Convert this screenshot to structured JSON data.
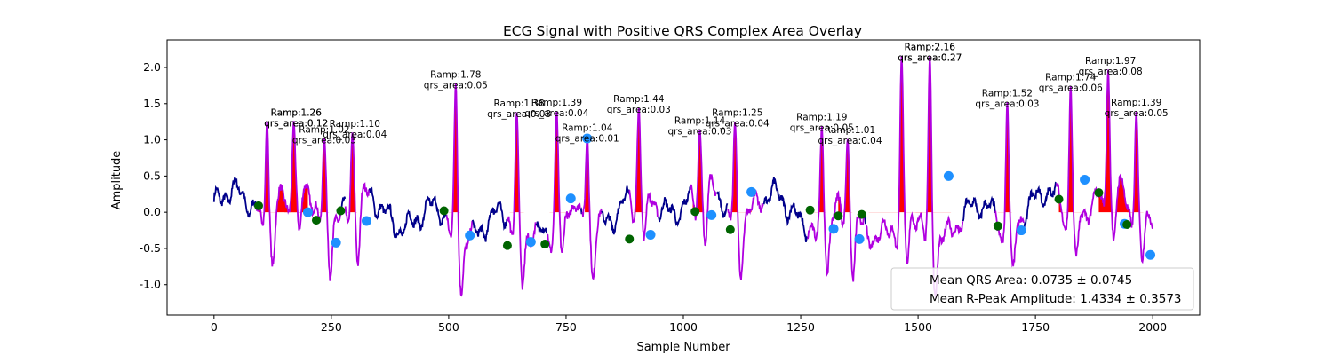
{
  "chart_data": {
    "type": "line",
    "title": "ECG Signal with Positive QRS Complex Area Overlay",
    "xlabel": "Sample Number",
    "ylabel": "Amplitude",
    "xlim": [
      -100,
      2100
    ],
    "ylim": [
      -1.42,
      2.38
    ],
    "xticks": [
      "0",
      "250",
      "500",
      "750",
      "1000",
      "1250",
      "1500",
      "1750",
      "2000"
    ],
    "xtick_values": [
      0,
      250,
      500,
      750,
      1000,
      1250,
      1500,
      1750,
      2000
    ],
    "yticks": [
      "-1.0",
      "-0.5",
      "0.0",
      "0.5",
      "1.0",
      "1.5",
      "2.0"
    ],
    "ytick_values": [
      -1.0,
      -0.5,
      0.0,
      0.5,
      1.0,
      1.5,
      2.0
    ],
    "grid": false,
    "colors": {
      "signal": "#00008b",
      "qrs_segment": "#b000e0",
      "qrs_area": "#ff0000",
      "q_marker": "#1e90ff",
      "s_marker": "#006400"
    },
    "r_peaks": [
      {
        "x": 113,
        "y": 1.26
      },
      {
        "x": 170,
        "y": 1.26
      },
      {
        "x": 235,
        "y": 1.02
      },
      {
        "x": 295,
        "y": 1.1
      },
      {
        "x": 515,
        "y": 1.78
      },
      {
        "x": 645,
        "y": 1.38
      },
      {
        "x": 730,
        "y": 1.39
      },
      {
        "x": 795,
        "y": 1.04
      },
      {
        "x": 905,
        "y": 1.44
      },
      {
        "x": 1035,
        "y": 1.14
      },
      {
        "x": 1110,
        "y": 1.25
      },
      {
        "x": 1295,
        "y": 1.19
      },
      {
        "x": 1350,
        "y": 1.01
      },
      {
        "x": 1465,
        "y": 2.16
      },
      {
        "x": 1525,
        "y": 2.16
      },
      {
        "x": 1690,
        "y": 1.52
      },
      {
        "x": 1825,
        "y": 1.74
      },
      {
        "x": 1905,
        "y": 1.97
      },
      {
        "x": 1965,
        "y": 1.39
      }
    ],
    "q_points": [
      {
        "x": 200,
        "y": 0.0
      },
      {
        "x": 260,
        "y": -0.42
      },
      {
        "x": 325,
        "y": -0.12
      },
      {
        "x": 545,
        "y": -0.32
      },
      {
        "x": 675,
        "y": -0.41
      },
      {
        "x": 760,
        "y": 0.19
      },
      {
        "x": 795,
        "y": 1.02
      },
      {
        "x": 930,
        "y": -0.31
      },
      {
        "x": 1060,
        "y": -0.04
      },
      {
        "x": 1145,
        "y": 0.28
      },
      {
        "x": 1320,
        "y": -0.23
      },
      {
        "x": 1375,
        "y": -0.37
      },
      {
        "x": 1565,
        "y": 0.5
      },
      {
        "x": 1720,
        "y": -0.25
      },
      {
        "x": 1855,
        "y": 0.45
      },
      {
        "x": 1940,
        "y": -0.16
      },
      {
        "x": 1995,
        "y": -0.59
      }
    ],
    "s_points": [
      {
        "x": 95,
        "y": 0.09
      },
      {
        "x": 218,
        "y": -0.11
      },
      {
        "x": 270,
        "y": 0.02
      },
      {
        "x": 490,
        "y": 0.02
      },
      {
        "x": 625,
        "y": -0.46
      },
      {
        "x": 705,
        "y": -0.44
      },
      {
        "x": 885,
        "y": -0.37
      },
      {
        "x": 1025,
        "y": 0.01
      },
      {
        "x": 1100,
        "y": -0.24
      },
      {
        "x": 1270,
        "y": 0.03
      },
      {
        "x": 1330,
        "y": -0.05
      },
      {
        "x": 1380,
        "y": -0.03
      },
      {
        "x": 1670,
        "y": -0.19
      },
      {
        "x": 1800,
        "y": 0.18
      },
      {
        "x": 1885,
        "y": 0.27
      },
      {
        "x": 1945,
        "y": -0.17
      }
    ],
    "qrs_areas": [
      {
        "x0": 95,
        "x1": 190
      },
      {
        "x0": 150,
        "x1": 200
      },
      {
        "x0": 220,
        "x1": 245
      },
      {
        "x0": 285,
        "x1": 305
      },
      {
        "x0": 500,
        "x1": 525
      },
      {
        "x0": 630,
        "x1": 660
      },
      {
        "x0": 715,
        "x1": 755
      },
      {
        "x0": 790,
        "x1": 800
      },
      {
        "x0": 890,
        "x1": 920
      },
      {
        "x0": 1020,
        "x1": 1045
      },
      {
        "x0": 1100,
        "x1": 1145
      },
      {
        "x0": 1270,
        "x1": 1305
      },
      {
        "x0": 1330,
        "x1": 1360
      },
      {
        "x0": 1395,
        "x1": 1510
      },
      {
        "x0": 1495,
        "x1": 1570
      },
      {
        "x0": 1670,
        "x1": 1700
      },
      {
        "x0": 1800,
        "x1": 1855
      },
      {
        "x0": 1885,
        "x1": 1960
      },
      {
        "x0": 1945,
        "x1": 1980
      }
    ],
    "annotations": [
      {
        "lines": [
          "Ramp:1.26",
          "qrs_area:0.12"
        ],
        "x": 175,
        "y": 1.16
      },
      {
        "lines": [
          "Ramp:1.26",
          "qrs_area:0.12"
        ],
        "x": 175,
        "y": 1.16
      },
      {
        "lines": [
          "Ramp:1.02",
          "qrs_area:0.03"
        ],
        "x": 235,
        "y": 0.93
      },
      {
        "lines": [
          "Ramp:1.10",
          "qrs_area:0.04"
        ],
        "x": 300,
        "y": 1.01
      },
      {
        "lines": [
          "Ramp:1.78",
          "qrs_area:0.05"
        ],
        "x": 515,
        "y": 1.69
      },
      {
        "lines": [
          "Ramp:1.38",
          "qrs_area:0.03"
        ],
        "x": 650,
        "y": 1.29
      },
      {
        "lines": [
          "Ramp:1.39",
          "qrs_area:0.04"
        ],
        "x": 730,
        "y": 1.3
      },
      {
        "lines": [
          "Ramp:1.04",
          "qrs_area:0.01"
        ],
        "x": 795,
        "y": 0.95
      },
      {
        "lines": [
          "Ramp:1.44",
          "qrs_area:0.03"
        ],
        "x": 905,
        "y": 1.35
      },
      {
        "lines": [
          "Ramp:1.14",
          "qrs_area:0.03"
        ],
        "x": 1035,
        "y": 1.05
      },
      {
        "lines": [
          "Ramp:1.25",
          "qrs_area:0.04"
        ],
        "x": 1115,
        "y": 1.16
      },
      {
        "lines": [
          "Ramp:1.19",
          "qrs_area:0.05"
        ],
        "x": 1295,
        "y": 1.1
      },
      {
        "lines": [
          "Ramp:1.01",
          "qrs_area:0.04"
        ],
        "x": 1355,
        "y": 0.92
      },
      {
        "lines": [
          "Ramp:2.16",
          "qrs_area:0.27"
        ],
        "x": 1525,
        "y": 2.07
      },
      {
        "lines": [
          "Ramp:2.16",
          "qrs_area:0.27"
        ],
        "x": 1525,
        "y": 2.07
      },
      {
        "lines": [
          "Ramp:1.52",
          "qrs_area:0.03"
        ],
        "x": 1690,
        "y": 1.43
      },
      {
        "lines": [
          "Ramp:1.74",
          "qrs_area:0.06"
        ],
        "x": 1825,
        "y": 1.65
      },
      {
        "lines": [
          "Ramp:1.97",
          "qrs_area:0.08"
        ],
        "x": 1910,
        "y": 1.88
      },
      {
        "lines": [
          "Ramp:1.39",
          "qrs_area:0.05"
        ],
        "x": 1965,
        "y": 1.3
      }
    ],
    "legend": {
      "placement": "lower right",
      "entries": [
        "Mean QRS Area: 0.0735 ± 0.0745",
        "Mean R-Peak Amplitude: 1.4334 ± 0.3573"
      ]
    }
  }
}
